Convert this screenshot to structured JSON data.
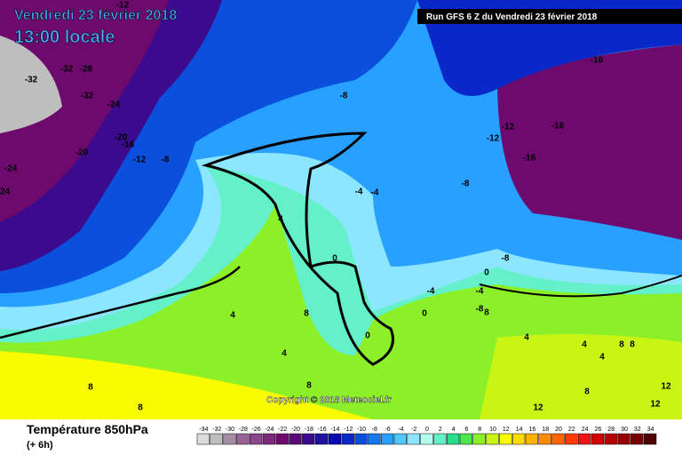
{
  "header": {
    "date": "Vendredi 23 février 2018",
    "time": "13:00 locale",
    "run": "Run GFS 6 Z du Vendredi 23 février 2018"
  },
  "footer": {
    "variable": "Température 850hPa",
    "lead": "(+ 6h)",
    "copyright": "Copyright © 2018 Meteociel.fr"
  },
  "scale": {
    "values": [
      -34,
      -32,
      -30,
      -28,
      -26,
      -24,
      -22,
      -20,
      -18,
      -16,
      -14,
      -12,
      -10,
      -8,
      -6,
      -4,
      -2,
      0,
      2,
      4,
      6,
      8,
      10,
      12,
      14,
      16,
      18,
      20,
      22,
      24,
      26,
      28,
      30,
      32,
      34
    ],
    "colors": [
      "#dcdcdc",
      "#bebebe",
      "#a58ca5",
      "#966496",
      "#8c468c",
      "#7d287d",
      "#6e0a6e",
      "#5a0a78",
      "#3c0a8c",
      "#1e14a0",
      "#0a0ab4",
      "#0a28c8",
      "#0a50dc",
      "#1478f0",
      "#28a0ff",
      "#50c8ff",
      "#8ce6ff",
      "#b4fff0",
      "#64f0c8",
      "#28dc8c",
      "#50e650",
      "#8cf028",
      "#c8f514",
      "#fafa00",
      "#ffdc00",
      "#ffb400",
      "#ff8c00",
      "#ff6400",
      "#ff3c00",
      "#f01414",
      "#d20000",
      "#b40000",
      "#960000",
      "#780000",
      "#500000"
    ]
  },
  "map_labels": [
    "-12",
    "-32",
    "-28",
    "-32",
    "-32",
    "-24",
    "-20",
    "-16",
    "-24",
    "-20",
    "-12",
    "-8",
    "-24",
    "-8",
    "-16",
    "-12",
    "-16",
    "-16",
    "-12",
    "-8",
    "-8",
    "-4",
    "-4",
    "0",
    "4",
    "4",
    "8",
    "4",
    "8",
    "0",
    "-4",
    "0",
    "-4",
    "-8",
    "0",
    "4",
    "8",
    "4",
    "4",
    "8",
    "8",
    "8",
    "12",
    "8",
    "12",
    "12",
    "8"
  ]
}
